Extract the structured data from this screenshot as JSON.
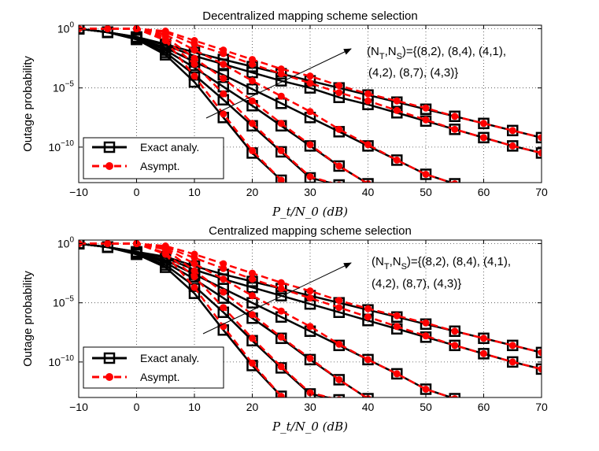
{
  "chart_data": [
    {
      "type": "line",
      "title": "Decentralized mapping scheme selection",
      "xlabel": "P_t/N_0 (dB)",
      "ylabel": "Outage probability",
      "xlim": [
        -10,
        70
      ],
      "ylim_log10": [
        -13,
        0.3
      ],
      "xticks": [
        -10,
        0,
        10,
        20,
        30,
        40,
        50,
        60,
        70
      ],
      "xtick_labels": [
        "−10",
        "0",
        "10",
        "20",
        "30",
        "40",
        "50",
        "60",
        "70"
      ],
      "yticks_log10": [
        0,
        -5,
        -10
      ],
      "ytick_labels": [
        {
          "base": "10",
          "exp": "0"
        },
        {
          "base": "10",
          "exp": "−5"
        },
        {
          "base": "10",
          "exp": "−10"
        }
      ],
      "grid": true,
      "legend": {
        "location": "bottom-left",
        "entries": [
          "Exact analy.",
          "Asympt."
        ]
      },
      "annotation": {
        "line1": "(N",
        "sub1": "T",
        "mid": ",N",
        "sub2": "S",
        "rest1": ")={(8,2), (8,4), (4,1),",
        "line2": "(4,2), (8,7), (4,3)}"
      },
      "x": [
        -10,
        -5,
        0,
        5,
        10,
        15,
        20,
        25,
        30,
        35,
        40,
        45,
        50,
        55,
        60,
        65,
        70
      ],
      "series": [
        {
          "name": "(8,2) exact",
          "style": "exact",
          "log10_values": [
            0,
            -0.3,
            -0.7,
            -1.3,
            -2.0,
            -2.6,
            -3.2,
            -3.8,
            -4.4,
            -5.0,
            -5.6,
            -6.2,
            -6.8,
            -7.4,
            -8.0,
            -8.6,
            -9.2
          ]
        },
        {
          "name": "(8,2) asympt",
          "style": "asympt",
          "log10_values": [
            0,
            0,
            0,
            -0.2,
            -1.0,
            -1.8,
            -2.6,
            -3.4,
            -4.0,
            -4.8,
            -5.5,
            -6.1,
            -6.7,
            -7.4,
            -8.0,
            -8.6,
            -9.2
          ]
        },
        {
          "name": "(8,4) exact",
          "style": "exact",
          "log10_values": [
            0,
            -0.3,
            -0.7,
            -1.4,
            -2.3,
            -3.0,
            -3.7,
            -4.4,
            -5.0,
            -5.8,
            -6.4,
            -7.1,
            -7.8,
            -8.5,
            -9.2,
            -9.9,
            -10.5
          ]
        },
        {
          "name": "(8,4) asympt",
          "style": "asympt",
          "log10_values": [
            0,
            0,
            0,
            -0.3,
            -1.3,
            -2.1,
            -3.0,
            -3.8,
            -4.6,
            -5.4,
            -6.1,
            -6.9,
            -7.7,
            -8.5,
            -9.2,
            -9.9,
            -10.5
          ]
        },
        {
          "name": "(4,1) exact",
          "style": "exact",
          "log10_values": [
            0,
            -0.3,
            -0.8,
            -1.6,
            -2.8,
            -3.9,
            -5.1,
            -6.3,
            -7.5,
            -8.7,
            -9.9,
            -11.1,
            -12.3,
            -13.1
          ]
        },
        {
          "name": "(4,1) asympt",
          "style": "asympt",
          "log10_values": [
            0,
            0,
            0,
            -0.5,
            -1.8,
            -3.0,
            -4.4,
            -5.7,
            -7.0,
            -8.5,
            -9.8,
            -11.1,
            -12.3,
            -13.1
          ]
        },
        {
          "name": "(4,2) exact",
          "style": "exact",
          "log10_values": [
            0,
            -0.3,
            -0.8,
            -1.8,
            -3.3,
            -4.9,
            -6.5,
            -8.2,
            -9.9,
            -11.6,
            -13.1
          ]
        },
        {
          "name": "(4,2) asympt",
          "style": "asympt",
          "log10_values": [
            0,
            0,
            0,
            -0.7,
            -2.5,
            -4.2,
            -6.1,
            -8.0,
            -9.8,
            -11.6,
            -13.1
          ]
        },
        {
          "name": "(8,7) exact",
          "style": "exact",
          "log10_values": [
            0,
            -0.3,
            -0.9,
            -2.0,
            -3.9,
            -6.0,
            -8.2,
            -10.4,
            -12.6,
            -13.2
          ]
        },
        {
          "name": "(8,7) asympt",
          "style": "asympt",
          "log10_values": [
            0,
            0,
            0,
            -0.9,
            -3.0,
            -5.5,
            -8.0,
            -10.3,
            -12.5,
            -13.2
          ]
        },
        {
          "name": "(4,3) exact",
          "style": "exact",
          "log10_values": [
            0,
            -0.3,
            -0.9,
            -2.2,
            -4.5,
            -7.5,
            -10.5,
            -12.8
          ]
        },
        {
          "name": "(4,3) asympt",
          "style": "asympt",
          "log10_values": [
            0,
            0,
            0,
            -1.0,
            -4.0,
            -7.2,
            -10.3,
            -12.8
          ]
        }
      ]
    },
    {
      "type": "line",
      "title": "Centralized mapping scheme selection",
      "xlabel": "P_t/N_0 (dB)",
      "ylabel": "Outage probability",
      "xlim": [
        -10,
        70
      ],
      "ylim_log10": [
        -13,
        0.3
      ],
      "xticks": [
        -10,
        0,
        10,
        20,
        30,
        40,
        50,
        60,
        70
      ],
      "xtick_labels": [
        "−10",
        "0",
        "10",
        "20",
        "30",
        "40",
        "50",
        "60",
        "70"
      ],
      "yticks_log10": [
        0,
        -5,
        -10
      ],
      "ytick_labels": [
        {
          "base": "10",
          "exp": "0"
        },
        {
          "base": "10",
          "exp": "−5"
        },
        {
          "base": "10",
          "exp": "−10"
        }
      ],
      "grid": true,
      "legend": {
        "location": "bottom-left",
        "entries": [
          "Exact analy.",
          "Asympt."
        ]
      },
      "annotation": {
        "line1": "(N",
        "sub1": "T",
        "mid": ",N",
        "sub2": "S",
        "rest1": ")={(8,2), (8,4), (4,1),",
        "line2": "(4,2), (8,7), (4,3)}"
      },
      "x": [
        -10,
        -5,
        0,
        5,
        10,
        15,
        20,
        25,
        30,
        35,
        40,
        45,
        50,
        55,
        60,
        65,
        70
      ],
      "series": [
        {
          "name": "(8,2) exact",
          "style": "exact",
          "log10_values": [
            0,
            -0.3,
            -0.7,
            -1.1,
            -1.9,
            -2.6,
            -3.2,
            -3.8,
            -4.4,
            -5.0,
            -5.6,
            -6.2,
            -6.8,
            -7.4,
            -8.0,
            -8.6,
            -9.2
          ]
        },
        {
          "name": "(8,2) asympt",
          "style": "asympt",
          "log10_values": [
            0,
            0,
            0,
            -0.2,
            -0.9,
            -1.7,
            -2.5,
            -3.3,
            -4.0,
            -4.8,
            -5.5,
            -6.1,
            -6.7,
            -7.4,
            -8.0,
            -8.6,
            -9.2
          ]
        },
        {
          "name": "(8,4) exact",
          "style": "exact",
          "log10_values": [
            0,
            -0.3,
            -0.7,
            -1.2,
            -2.2,
            -3.0,
            -3.7,
            -4.4,
            -5.1,
            -5.8,
            -6.5,
            -7.2,
            -7.9,
            -8.6,
            -9.3,
            -10.0,
            -10.6
          ]
        },
        {
          "name": "(8,4) asympt",
          "style": "asympt",
          "log10_values": [
            0,
            0,
            0,
            -0.3,
            -1.2,
            -2.1,
            -3.0,
            -3.8,
            -4.6,
            -5.4,
            -6.2,
            -7.0,
            -7.8,
            -8.6,
            -9.3,
            -10.0,
            -10.6
          ]
        },
        {
          "name": "(4,1) exact",
          "style": "exact",
          "log10_values": [
            0,
            -0.3,
            -0.8,
            -1.4,
            -2.6,
            -3.8,
            -5.0,
            -6.2,
            -7.4,
            -8.6,
            -9.8,
            -11.0,
            -12.3,
            -13.1
          ]
        },
        {
          "name": "(4,1) asympt",
          "style": "asympt",
          "log10_values": [
            0,
            0,
            0,
            -0.4,
            -1.7,
            -3.0,
            -4.4,
            -5.7,
            -7.0,
            -8.5,
            -9.8,
            -11.0,
            -12.3,
            -13.1
          ]
        },
        {
          "name": "(4,2) exact",
          "style": "exact",
          "log10_values": [
            0,
            -0.3,
            -0.8,
            -1.6,
            -3.0,
            -4.6,
            -6.3,
            -8.0,
            -9.8,
            -11.5,
            -13.1
          ]
        },
        {
          "name": "(4,2) asympt",
          "style": "asympt",
          "log10_values": [
            0,
            0,
            0,
            -0.5,
            -2.3,
            -4.1,
            -6.0,
            -7.9,
            -9.7,
            -11.5,
            -13.1
          ]
        },
        {
          "name": "(8,7) exact",
          "style": "exact",
          "log10_values": [
            0,
            -0.3,
            -0.9,
            -1.8,
            -3.6,
            -5.8,
            -8.2,
            -10.5,
            -12.7,
            -13.2
          ]
        },
        {
          "name": "(8,7) asympt",
          "style": "asympt",
          "log10_values": [
            0,
            0,
            0,
            -0.8,
            -2.8,
            -5.4,
            -8.0,
            -10.4,
            -12.6,
            -13.2
          ]
        },
        {
          "name": "(4,3) exact",
          "style": "exact",
          "log10_values": [
            0,
            -0.3,
            -0.9,
            -2.0,
            -4.2,
            -7.3,
            -10.3,
            -12.9
          ]
        },
        {
          "name": "(4,3) asympt",
          "style": "asympt",
          "log10_values": [
            0,
            0,
            0,
            -0.9,
            -3.7,
            -7.0,
            -10.1,
            -12.9
          ]
        }
      ]
    }
  ]
}
